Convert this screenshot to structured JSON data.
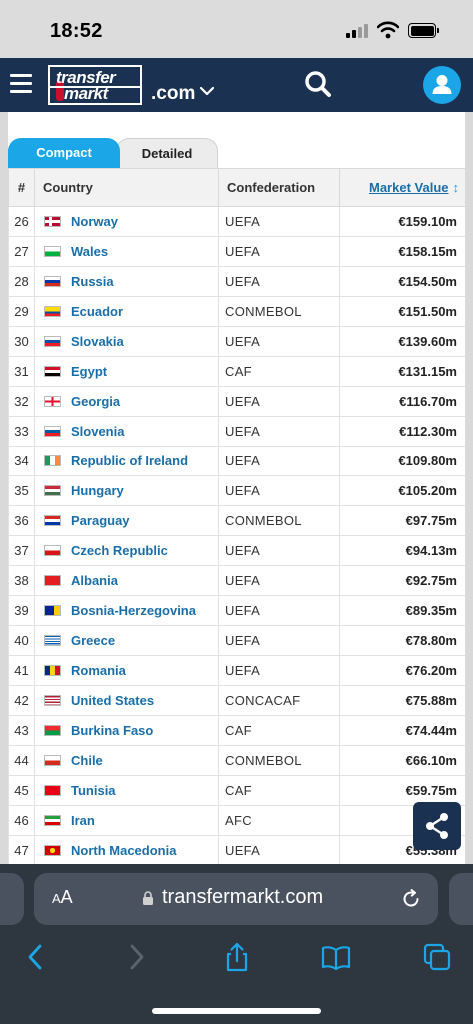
{
  "status_bar": {
    "time": "18:52"
  },
  "header": {
    "logo_line1": "transfer",
    "logo_line2": "markt",
    "domain": ".com"
  },
  "tabs": [
    {
      "label": "Compact",
      "active": true
    },
    {
      "label": "Detailed",
      "active": false
    }
  ],
  "table": {
    "columns": {
      "num": "#",
      "country": "Country",
      "confederation": "Confederation",
      "market_value": "Market Value",
      "sort_glyph": "↕"
    },
    "rows": [
      {
        "rank": "26",
        "country": "Norway",
        "confederation": "UEFA",
        "market_value": "€159.10m",
        "flag": "norway"
      },
      {
        "rank": "27",
        "country": "Wales",
        "confederation": "UEFA",
        "market_value": "€158.15m",
        "flag": "wales"
      },
      {
        "rank": "28",
        "country": "Russia",
        "confederation": "UEFA",
        "market_value": "€154.50m",
        "flag": "russia"
      },
      {
        "rank": "29",
        "country": "Ecuador",
        "confederation": "CONMEBOL",
        "market_value": "€151.50m",
        "flag": "ecuador"
      },
      {
        "rank": "30",
        "country": "Slovakia",
        "confederation": "UEFA",
        "market_value": "€139.60m",
        "flag": "slovakia"
      },
      {
        "rank": "31",
        "country": "Egypt",
        "confederation": "CAF",
        "market_value": "€131.15m",
        "flag": "egypt"
      },
      {
        "rank": "32",
        "country": "Georgia",
        "confederation": "UEFA",
        "market_value": "€116.70m",
        "flag": "georgia"
      },
      {
        "rank": "33",
        "country": "Slovenia",
        "confederation": "UEFA",
        "market_value": "€112.30m",
        "flag": "slovenia"
      },
      {
        "rank": "34",
        "country": "Republic of Ireland",
        "confederation": "UEFA",
        "market_value": "€109.80m",
        "flag": "ireland"
      },
      {
        "rank": "35",
        "country": "Hungary",
        "confederation": "UEFA",
        "market_value": "€105.20m",
        "flag": "hungary"
      },
      {
        "rank": "36",
        "country": "Paraguay",
        "confederation": "CONMEBOL",
        "market_value": "€97.75m",
        "flag": "paraguay"
      },
      {
        "rank": "37",
        "country": "Czech Republic",
        "confederation": "UEFA",
        "market_value": "€94.13m",
        "flag": "czech"
      },
      {
        "rank": "38",
        "country": "Albania",
        "confederation": "UEFA",
        "market_value": "€92.75m",
        "flag": "albania"
      },
      {
        "rank": "39",
        "country": "Bosnia-Herzegovina",
        "confederation": "UEFA",
        "market_value": "€89.35m",
        "flag": "bosnia"
      },
      {
        "rank": "40",
        "country": "Greece",
        "confederation": "UEFA",
        "market_value": "€78.80m",
        "flag": "greece"
      },
      {
        "rank": "41",
        "country": "Romania",
        "confederation": "UEFA",
        "market_value": "€76.20m",
        "flag": "romania"
      },
      {
        "rank": "42",
        "country": "United States",
        "confederation": "CONCACAF",
        "market_value": "€75.88m",
        "flag": "usa"
      },
      {
        "rank": "43",
        "country": "Burkina Faso",
        "confederation": "CAF",
        "market_value": "€74.44m",
        "flag": "burkina"
      },
      {
        "rank": "44",
        "country": "Chile",
        "confederation": "CONMEBOL",
        "market_value": "€66.10m",
        "flag": "chile"
      },
      {
        "rank": "45",
        "country": "Tunisia",
        "confederation": "CAF",
        "market_value": "€59.75m",
        "flag": "tunisia"
      },
      {
        "rank": "46",
        "country": "Iran",
        "confederation": "AFC",
        "market_value": "€5",
        "flag": "iran"
      },
      {
        "rank": "47",
        "country": "North Macedonia",
        "confederation": "UEFA",
        "market_value": "€55.38m",
        "flag": "macedonia"
      }
    ]
  },
  "browser": {
    "text_size_label_small": "A",
    "text_size_label_large": "A",
    "url": "transfermarkt.com"
  },
  "colors": {
    "brand_navy": "#1a3151",
    "accent_blue": "#1ba6e8",
    "link_blue": "#1a6ea8"
  }
}
